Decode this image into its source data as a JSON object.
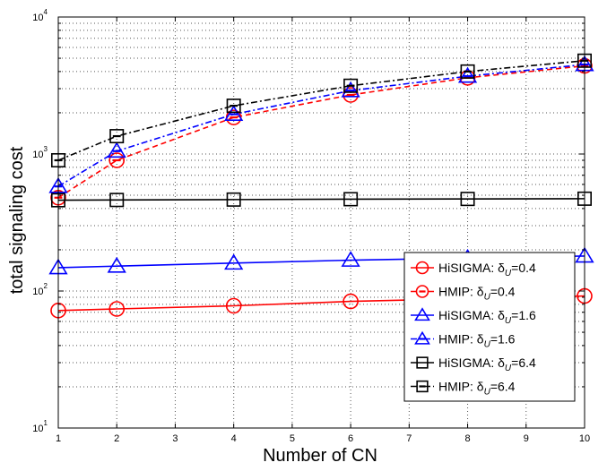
{
  "chart_data": {
    "type": "line",
    "xlabel": "Number of CN",
    "ylabel": "total signaling cost",
    "x_ticks": [
      "1",
      "2",
      "3",
      "4",
      "5",
      "6",
      "7",
      "8",
      "9",
      "10"
    ],
    "y_scale": "log",
    "y_ticks": [
      {
        "value": 10,
        "base": "10",
        "exp": "1"
      },
      {
        "value": 100,
        "base": "10",
        "exp": "2"
      },
      {
        "value": 1000,
        "base": "10",
        "exp": "3"
      },
      {
        "value": 10000,
        "base": "10",
        "exp": "4"
      }
    ],
    "xlim": [
      1,
      10
    ],
    "ylim": [
      10,
      10000
    ],
    "grid": true,
    "legend_position": "middle-right",
    "x": [
      1,
      2,
      4,
      6,
      8,
      10
    ],
    "series": [
      {
        "name_prefix": "HiSIGMA: δ",
        "name_sub": "U",
        "name_suffix": "=0.4",
        "color": "#ff0000",
        "marker": "circle",
        "line": "solid",
        "values": [
          72,
          74,
          78,
          84,
          88,
          92
        ]
      },
      {
        "name_prefix": "HMIP: δ",
        "name_sub": "U",
        "name_suffix": "=0.4",
        "color": "#ff0000",
        "marker": "circle-bar",
        "line": "dashed",
        "values": [
          480,
          900,
          1850,
          2700,
          3600,
          4400
        ]
      },
      {
        "name_prefix": "HiSIGMA: δ",
        "name_sub": "U",
        "name_suffix": "=1.6",
        "color": "#0000ff",
        "marker": "triangle",
        "line": "solid",
        "values": [
          148,
          152,
          160,
          168,
          174,
          180
        ]
      },
      {
        "name_prefix": "HMIP: δ",
        "name_sub": "U",
        "name_suffix": "=1.6",
        "color": "#0000ff",
        "marker": "triangle-bar",
        "line": "dashdot",
        "values": [
          580,
          1050,
          1950,
          2900,
          3700,
          4500
        ]
      },
      {
        "name_prefix": "HiSIGMA: δ",
        "name_sub": "U",
        "name_suffix": "=6.4",
        "color": "#000000",
        "marker": "square",
        "line": "solid",
        "values": [
          460,
          462,
          465,
          468,
          470,
          472
        ]
      },
      {
        "name_prefix": "HMIP: δ",
        "name_sub": "U",
        "name_suffix": "=6.4",
        "color": "#000000",
        "marker": "square-bar",
        "line": "dashdot",
        "values": [
          900,
          1350,
          2250,
          3150,
          4000,
          4800
        ]
      }
    ]
  }
}
